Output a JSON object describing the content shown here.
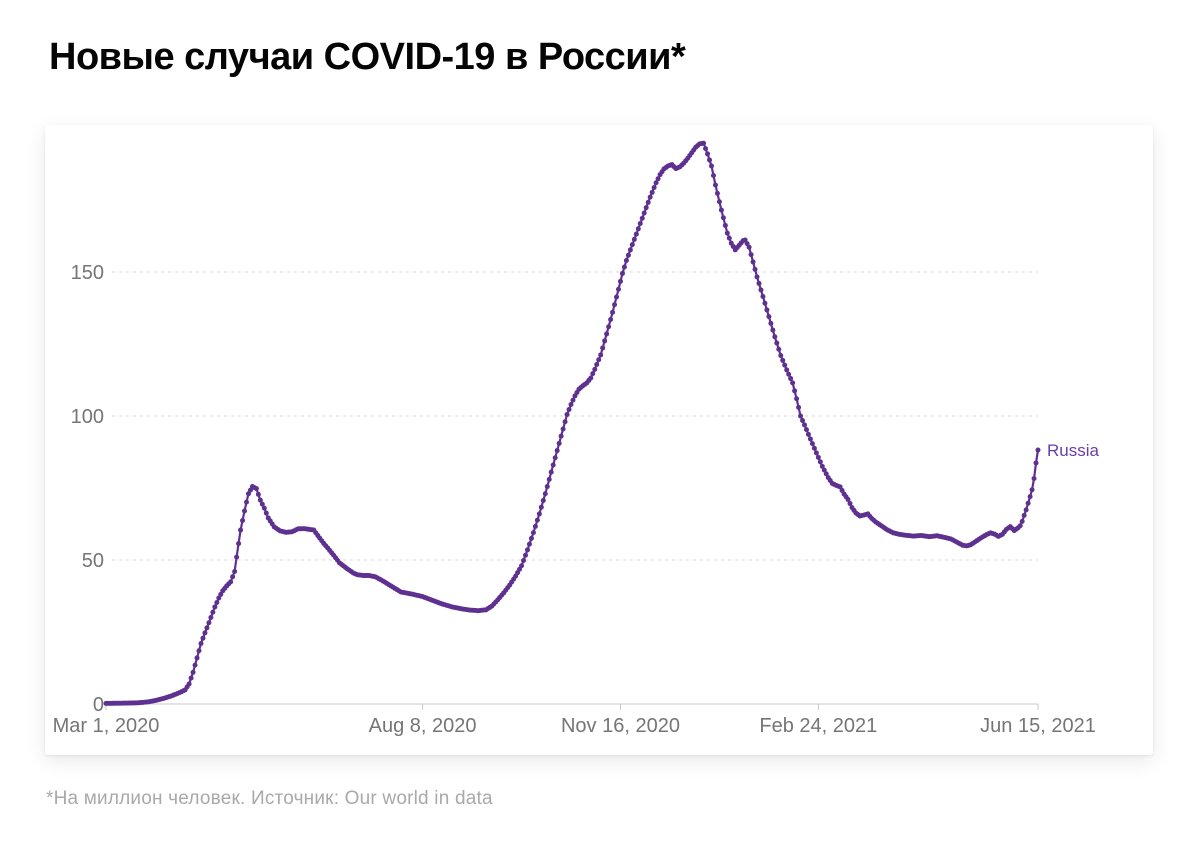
{
  "header": {
    "title": "Новые случаи COVID-19 в России*"
  },
  "footnote": {
    "text": "*На миллион человек. Источник: Our world in data"
  },
  "chart_data": {
    "type": "line",
    "title": "Новые случаи COVID-19 в России*",
    "series_name": "Russia",
    "end_label": "Russia",
    "unit": "new cases per million (7-day smoothed)",
    "colors": {
      "line": "#5e3191",
      "end_label": "#6a3da6",
      "grid": "#d7d7d7",
      "axis": "#c9c9c9",
      "tick_label": "#757575"
    },
    "x_axis": {
      "start_date": "2020-03-01",
      "max_day": 471,
      "tick_days": [
        0,
        160,
        260,
        360,
        471
      ],
      "tick_labels": [
        "Mar 1, 2020",
        "Aug 8, 2020",
        "Nov 16, 2020",
        "Feb 24, 2021",
        "Jun 15, 2021"
      ],
      "grid": false
    },
    "y_axis": {
      "ticks": [
        0,
        50,
        100,
        150
      ],
      "range": [
        0,
        200
      ],
      "grid": true,
      "grid_style": "dashed"
    },
    "legend_position": "end-of-line",
    "points_note": "x = days since 2020-03-01, y = daily new confirmed cases per million",
    "points": [
      [
        0,
        0.2
      ],
      [
        10,
        0.3
      ],
      [
        16,
        0.4
      ],
      [
        21,
        0.7
      ],
      [
        25,
        1.2
      ],
      [
        29,
        1.9
      ],
      [
        33,
        2.8
      ],
      [
        36,
        3.6
      ],
      [
        38,
        4.2
      ],
      [
        40,
        4.9
      ],
      [
        42,
        7
      ],
      [
        44,
        11
      ],
      [
        46,
        16
      ],
      [
        48,
        21
      ],
      [
        50,
        24.7
      ],
      [
        52,
        28.2
      ],
      [
        55,
        33.7
      ],
      [
        57,
        36.8
      ],
      [
        59,
        39.3
      ],
      [
        61,
        41
      ],
      [
        63,
        42.4
      ],
      [
        65,
        46
      ],
      [
        66,
        51
      ],
      [
        68,
        60.4
      ],
      [
        70,
        67
      ],
      [
        71,
        70.1
      ],
      [
        72,
        73
      ],
      [
        74,
        75.5
      ],
      [
        76,
        74.8
      ],
      [
        78,
        70.8
      ],
      [
        80,
        68
      ],
      [
        82,
        64.6
      ],
      [
        85,
        61.5
      ],
      [
        88,
        60.1
      ],
      [
        91,
        59.6
      ],
      [
        94,
        59.8
      ],
      [
        97,
        60.8
      ],
      [
        100,
        60.9
      ],
      [
        103,
        60.6
      ],
      [
        105,
        60.4
      ],
      [
        108,
        57.6
      ],
      [
        110,
        55.8
      ],
      [
        112,
        54.2
      ],
      [
        115,
        51.7
      ],
      [
        118,
        49
      ],
      [
        122,
        46.9
      ],
      [
        125,
        45.5
      ],
      [
        127,
        44.9
      ],
      [
        130,
        44.6
      ],
      [
        133,
        44.6
      ],
      [
        136,
        44.2
      ],
      [
        139,
        43.1
      ],
      [
        144,
        41
      ],
      [
        149,
        38.9
      ],
      [
        155,
        38.1
      ],
      [
        160,
        37.3
      ],
      [
        165,
        36
      ],
      [
        170,
        34.7
      ],
      [
        175,
        33.7
      ],
      [
        180,
        33
      ],
      [
        184,
        32.6
      ],
      [
        188,
        32.4
      ],
      [
        192,
        32.7
      ],
      [
        195,
        34
      ],
      [
        198,
        36.2
      ],
      [
        201,
        38.6
      ],
      [
        204,
        41.3
      ],
      [
        207,
        44.4
      ],
      [
        210,
        48
      ],
      [
        213,
        53.5
      ],
      [
        216,
        59.5
      ],
      [
        219,
        66
      ],
      [
        222,
        73
      ],
      [
        225,
        80.5
      ],
      [
        228,
        88
      ],
      [
        231,
        95.5
      ],
      [
        233,
        100.5
      ],
      [
        235,
        104
      ],
      [
        237,
        107
      ],
      [
        239,
        109.3
      ],
      [
        241,
        110.5
      ],
      [
        243,
        111.5
      ],
      [
        245,
        113.2
      ],
      [
        247,
        116.2
      ],
      [
        250,
        121.2
      ],
      [
        253,
        128.5
      ],
      [
        256,
        136
      ],
      [
        259,
        144
      ],
      [
        261,
        149.5
      ],
      [
        263,
        154
      ],
      [
        266,
        159.5
      ],
      [
        269,
        165
      ],
      [
        272,
        170.5
      ],
      [
        275,
        176
      ],
      [
        278,
        181
      ],
      [
        280,
        183.8
      ],
      [
        282,
        185.8
      ],
      [
        284,
        186.8
      ],
      [
        286,
        187.3
      ],
      [
        288,
        185.9
      ],
      [
        290,
        186.5
      ],
      [
        292,
        187.8
      ],
      [
        294,
        189.5
      ],
      [
        296,
        191.4
      ],
      [
        298,
        193.3
      ],
      [
        300,
        194.5
      ],
      [
        302,
        194.7
      ],
      [
        304,
        191
      ],
      [
        306,
        186.8
      ],
      [
        308,
        180.2
      ],
      [
        311,
        171.5
      ],
      [
        314,
        163.5
      ],
      [
        316,
        160
      ],
      [
        318,
        157.7
      ],
      [
        320,
        159.3
      ],
      [
        322,
        160.9
      ],
      [
        323,
        161.1
      ],
      [
        325,
        158.6
      ],
      [
        327,
        153.5
      ],
      [
        329,
        148.3
      ],
      [
        332,
        141.5
      ],
      [
        335,
        134.5
      ],
      [
        338,
        127.5
      ],
      [
        341,
        121
      ],
      [
        344,
        116
      ],
      [
        347,
        111.5
      ],
      [
        349,
        106
      ],
      [
        351,
        100
      ],
      [
        353,
        96.9
      ],
      [
        356,
        92
      ],
      [
        359,
        87.2
      ],
      [
        362,
        82.5
      ],
      [
        365,
        78.6
      ],
      [
        367,
        76.6
      ],
      [
        369,
        75.9
      ],
      [
        371,
        75.4
      ],
      [
        373,
        72.9
      ],
      [
        375,
        71
      ],
      [
        377,
        68.2
      ],
      [
        379,
        66.3
      ],
      [
        381,
        65.3
      ],
      [
        383,
        65.6
      ],
      [
        385,
        66
      ],
      [
        387,
        64.4
      ],
      [
        389,
        63.2
      ],
      [
        392,
        61.8
      ],
      [
        395,
        60.4
      ],
      [
        398,
        59.4
      ],
      [
        401,
        58.9
      ],
      [
        404,
        58.6
      ],
      [
        408,
        58.3
      ],
      [
        412,
        58.5
      ],
      [
        416,
        58.1
      ],
      [
        420,
        58.4
      ],
      [
        424,
        57.8
      ],
      [
        427,
        57.3
      ],
      [
        430,
        56.2
      ],
      [
        433,
        55.1
      ],
      [
        435,
        54.9
      ],
      [
        437,
        55.3
      ],
      [
        439,
        56.2
      ],
      [
        442,
        57.6
      ],
      [
        445,
        58.8
      ],
      [
        447,
        59.4
      ],
      [
        449,
        59
      ],
      [
        451,
        58.2
      ],
      [
        453,
        58.9
      ],
      [
        455,
        60.6
      ],
      [
        457,
        61.6
      ],
      [
        459,
        60.2
      ],
      [
        461,
        61.2
      ],
      [
        462,
        61.9
      ],
      [
        463,
        63.4
      ],
      [
        464,
        65.5
      ],
      [
        465,
        67.4
      ],
      [
        466,
        69.7
      ],
      [
        467,
        72
      ],
      [
        468,
        74.4
      ],
      [
        469,
        78.3
      ],
      [
        470,
        83.7
      ],
      [
        471,
        88.2
      ]
    ]
  }
}
